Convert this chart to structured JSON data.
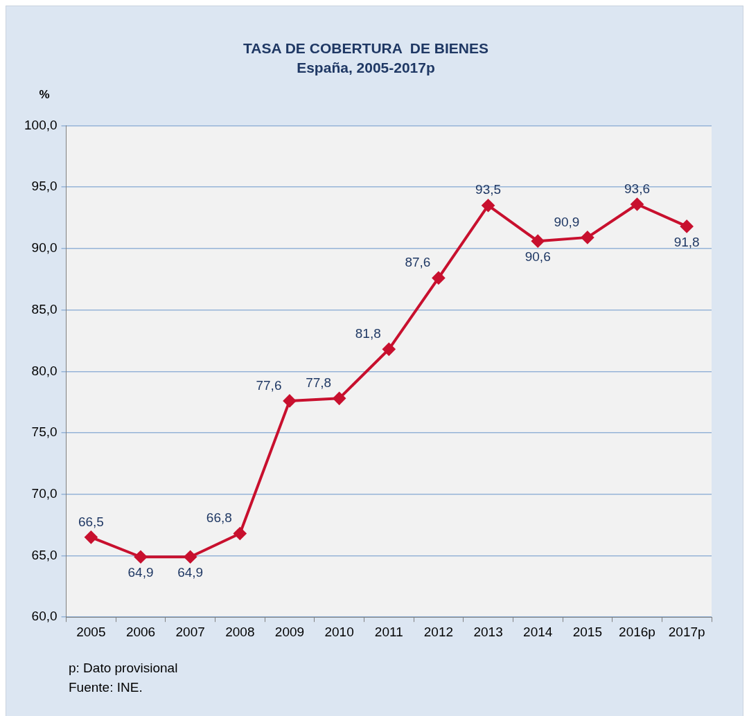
{
  "chart_data": {
    "type": "line",
    "title": "TASA DE COBERTURA  DE BIENES",
    "subtitle": "España, 2005-2017p",
    "ylabel": "%",
    "categories": [
      "2005",
      "2006",
      "2007",
      "2008",
      "2009",
      "2010",
      "2011",
      "2012",
      "2013",
      "2014",
      "2015",
      "2016p",
      "2017p"
    ],
    "series": [
      {
        "color": "#c8102e",
        "values": [
          66.5,
          64.9,
          64.9,
          66.8,
          77.6,
          77.8,
          81.8,
          87.6,
          93.5,
          90.6,
          90.9,
          93.6,
          91.8
        ],
        "value_labels": [
          "66,5",
          "64,9",
          "64,9",
          "66,8",
          "77,6",
          "77,8",
          "81,8",
          "87,6",
          "93,5",
          "90,6",
          "90,9",
          "93,6",
          "91,8"
        ]
      }
    ],
    "ylim": [
      60,
      100
    ],
    "yticks": [
      {
        "value": 60,
        "label": "60,0"
      },
      {
        "value": 65,
        "label": "65,0"
      },
      {
        "value": 70,
        "label": "70,0"
      },
      {
        "value": 75,
        "label": "75,0"
      },
      {
        "value": 80,
        "label": "80,0"
      },
      {
        "value": 85,
        "label": "85,0"
      },
      {
        "value": 90,
        "label": "90,0"
      },
      {
        "value": 95,
        "label": "95,0"
      },
      {
        "value": 100,
        "label": "100,0"
      }
    ],
    "grid": "y",
    "legend": false,
    "marker": "diamond",
    "line_style": "solid",
    "annotations": [
      "p: Dato provisional",
      "Fuente: INE."
    ]
  }
}
